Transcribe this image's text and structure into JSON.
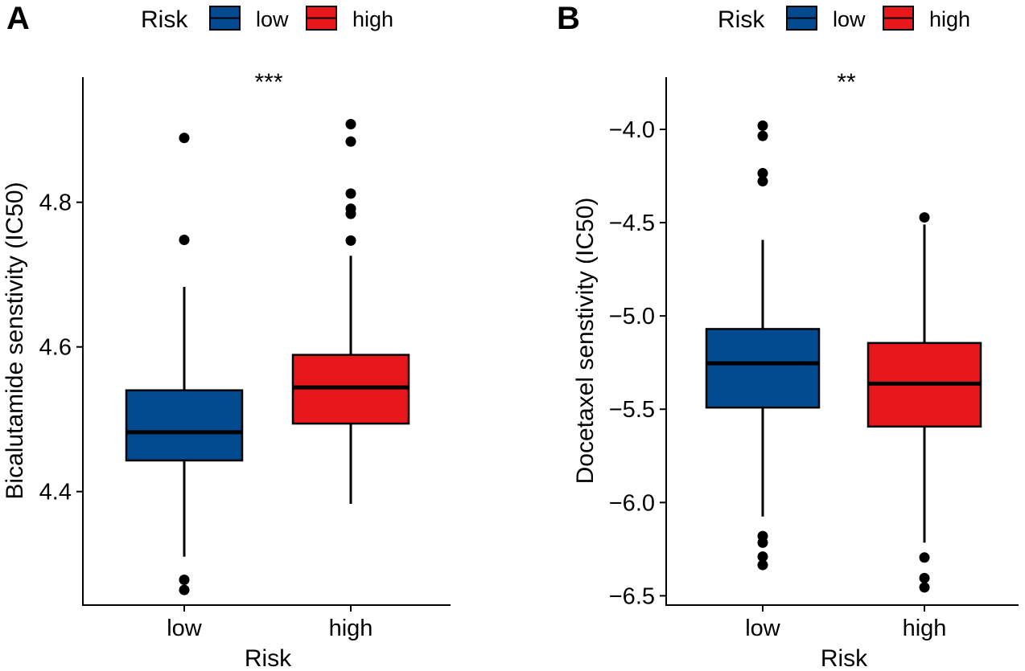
{
  "colors": {
    "low": "#024a8f",
    "high": "#e8171b",
    "line": "#000000",
    "point": "#000000"
  },
  "chart_data": [
    {
      "type": "box",
      "panel": "A",
      "legend": {
        "title": "Risk",
        "items": [
          {
            "key": "low",
            "label": "low"
          },
          {
            "key": "high",
            "label": "high"
          }
        ],
        "placement": "top"
      },
      "xlabel": "Risk",
      "ylabel": "Bicalutamide senstivity (IC50)",
      "ylim": [
        4.243,
        4.973
      ],
      "yticks": [
        4.4,
        4.6,
        4.8
      ],
      "ytick_labels": [
        "4.4",
        "4.6",
        "4.8"
      ],
      "categories": [
        "low",
        "high"
      ],
      "significance": "***",
      "boxes": [
        {
          "group": "low",
          "whisker_low": 4.31,
          "q1": 4.443,
          "median": 4.482,
          "q3": 4.54,
          "whisker_high": 4.683,
          "outliers": [
            4.889,
            4.748,
            4.278,
            4.264
          ]
        },
        {
          "group": "high",
          "whisker_low": 4.383,
          "q1": 4.494,
          "median": 4.544,
          "q3": 4.589,
          "whisker_high": 4.726,
          "outliers": [
            4.908,
            4.884,
            4.812,
            4.791,
            4.784,
            4.747
          ]
        }
      ]
    },
    {
      "type": "box",
      "panel": "B",
      "legend": {
        "title": "Risk",
        "items": [
          {
            "key": "low",
            "label": "low"
          },
          {
            "key": "high",
            "label": "high"
          }
        ],
        "placement": "top"
      },
      "xlabel": "Risk",
      "ylabel": "Docetaxel senstivity (IC50)",
      "ylim": [
        -6.55,
        -3.72
      ],
      "yticks": [
        -6.5,
        -6.0,
        -5.5,
        -5.0,
        -4.5,
        -4.0
      ],
      "ytick_labels": [
        "−6.5",
        "−6.0",
        "−5.5",
        "−5.0",
        "−4.5",
        "−4.0"
      ],
      "categories": [
        "low",
        "high"
      ],
      "significance": "**",
      "boxes": [
        {
          "group": "low",
          "whisker_low": -6.075,
          "q1": -5.491,
          "median": -5.254,
          "q3": -5.07,
          "whisker_high": -4.592,
          "outliers": [
            -3.98,
            -4.035,
            -4.235,
            -4.278,
            -6.18,
            -6.215,
            -6.29,
            -6.335
          ]
        },
        {
          "group": "high",
          "whisker_low": -6.215,
          "q1": -5.593,
          "median": -5.363,
          "q3": -5.145,
          "whisker_high": -4.51,
          "outliers": [
            -4.472,
            -6.295,
            -6.405,
            -6.455
          ]
        }
      ]
    }
  ]
}
